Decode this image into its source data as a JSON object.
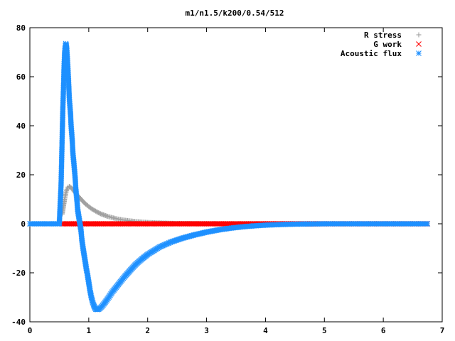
{
  "chart_data": {
    "type": "scatter",
    "title": "m1/n1.5/k200/0.54/512",
    "xlabel": "",
    "ylabel": "",
    "xlim": [
      0,
      7
    ],
    "ylim": [
      -40,
      80
    ],
    "x_ticks": [
      "0",
      "1",
      "2",
      "3",
      "4",
      "5",
      "6",
      "7"
    ],
    "y_ticks": [
      "-40",
      "-20",
      "0",
      "20",
      "40",
      "60",
      "80"
    ],
    "grid": false,
    "legend": "top-right",
    "series": [
      {
        "name": "R stress",
        "marker": "plus",
        "color": "#a0a0a0",
        "points": [
          [
            0.55,
            4
          ],
          [
            0.57,
            7
          ],
          [
            0.59,
            10
          ],
          [
            0.61,
            12.5
          ],
          [
            0.63,
            14
          ],
          [
            0.65,
            15
          ],
          [
            0.67,
            15.2
          ],
          [
            0.7,
            14.8
          ],
          [
            0.73,
            14
          ],
          [
            0.76,
            13
          ],
          [
            0.8,
            11.8
          ],
          [
            0.85,
            10.5
          ],
          [
            0.9,
            9.2
          ],
          [
            0.95,
            8
          ],
          [
            1.0,
            7
          ],
          [
            1.05,
            6.1
          ],
          [
            1.1,
            5.4
          ],
          [
            1.15,
            4.7
          ],
          [
            1.2,
            4.1
          ],
          [
            1.3,
            3.2
          ],
          [
            1.4,
            2.5
          ],
          [
            1.5,
            1.9
          ],
          [
            1.6,
            1.5
          ],
          [
            1.7,
            1.2
          ],
          [
            1.8,
            0.9
          ],
          [
            1.9,
            0.7
          ],
          [
            2.0,
            0.55
          ],
          [
            2.2,
            0.35
          ],
          [
            2.4,
            0.2
          ],
          [
            2.6,
            0.1
          ],
          [
            2.8,
            0.05
          ],
          [
            3.0,
            0.02
          ],
          [
            3.5,
            0
          ],
          [
            4.0,
            0
          ]
        ]
      },
      {
        "name": "G work",
        "marker": "cross",
        "color": "#ff0000",
        "points": [
          [
            0.55,
            0
          ],
          [
            0.8,
            0
          ],
          [
            1.0,
            0
          ],
          [
            1.5,
            0
          ],
          [
            2.0,
            0
          ],
          [
            2.5,
            0
          ],
          [
            3.0,
            0
          ],
          [
            3.5,
            0
          ],
          [
            4.0,
            0
          ],
          [
            4.5,
            0
          ],
          [
            5.0,
            0
          ],
          [
            5.5,
            0
          ],
          [
            6.0,
            0
          ],
          [
            6.5,
            0
          ],
          [
            6.75,
            0
          ]
        ]
      },
      {
        "name": "Acoustic flux",
        "marker": "star",
        "color": "#1e90ff",
        "points": [
          [
            0.0,
            0
          ],
          [
            0.25,
            0
          ],
          [
            0.5,
            0
          ],
          [
            0.53,
            16
          ],
          [
            0.56,
            47
          ],
          [
            0.57,
            54.5
          ],
          [
            0.58,
            63.5
          ],
          [
            0.59,
            69.5
          ],
          [
            0.6,
            72
          ],
          [
            0.61,
            73.5
          ],
          [
            0.62,
            73
          ],
          [
            0.63,
            70
          ],
          [
            0.64,
            66
          ],
          [
            0.65,
            61.5
          ],
          [
            0.66,
            56.5
          ],
          [
            0.67,
            51
          ],
          [
            0.69,
            45
          ],
          [
            0.7,
            40
          ],
          [
            0.72,
            34
          ],
          [
            0.73,
            29
          ],
          [
            0.75,
            24
          ],
          [
            0.77,
            18.5
          ],
          [
            0.78,
            14
          ],
          [
            0.8,
            9.5
          ],
          [
            0.81,
            6
          ],
          [
            0.83,
            3
          ],
          [
            0.85,
            0
          ],
          [
            0.87,
            -3
          ],
          [
            0.88,
            -6
          ],
          [
            0.9,
            -9.5
          ],
          [
            0.92,
            -12.5
          ],
          [
            0.94,
            -15.5
          ],
          [
            0.96,
            -18.5
          ],
          [
            0.98,
            -21
          ],
          [
            1.0,
            -24
          ],
          [
            1.02,
            -27
          ],
          [
            1.04,
            -29.5
          ],
          [
            1.06,
            -31.5
          ],
          [
            1.08,
            -33
          ],
          [
            1.1,
            -34.2
          ],
          [
            1.12,
            -34.9
          ],
          [
            1.15,
            -35
          ],
          [
            1.18,
            -34.7
          ],
          [
            1.22,
            -33.8
          ],
          [
            1.27,
            -32.3
          ],
          [
            1.33,
            -30.3
          ],
          [
            1.4,
            -27.8
          ],
          [
            1.5,
            -24.8
          ],
          [
            1.6,
            -21.8
          ],
          [
            1.7,
            -19.1
          ],
          [
            1.8,
            -16.5
          ],
          [
            1.9,
            -14.4
          ],
          [
            2.0,
            -12.5
          ],
          [
            2.2,
            -9.5
          ],
          [
            2.4,
            -7.4
          ],
          [
            2.6,
            -5.8
          ],
          [
            2.8,
            -4.5
          ],
          [
            3.0,
            -3.4
          ],
          [
            3.2,
            -2.5
          ],
          [
            3.4,
            -1.8
          ],
          [
            3.6,
            -1.25
          ],
          [
            3.8,
            -0.85
          ],
          [
            4.0,
            -0.55
          ],
          [
            4.2,
            -0.35
          ],
          [
            4.4,
            -0.2
          ],
          [
            4.6,
            -0.1
          ],
          [
            4.8,
            -0.05
          ],
          [
            5.0,
            0
          ],
          [
            5.5,
            0
          ],
          [
            6.0,
            0
          ],
          [
            6.5,
            0
          ],
          [
            6.75,
            0
          ]
        ]
      }
    ]
  }
}
